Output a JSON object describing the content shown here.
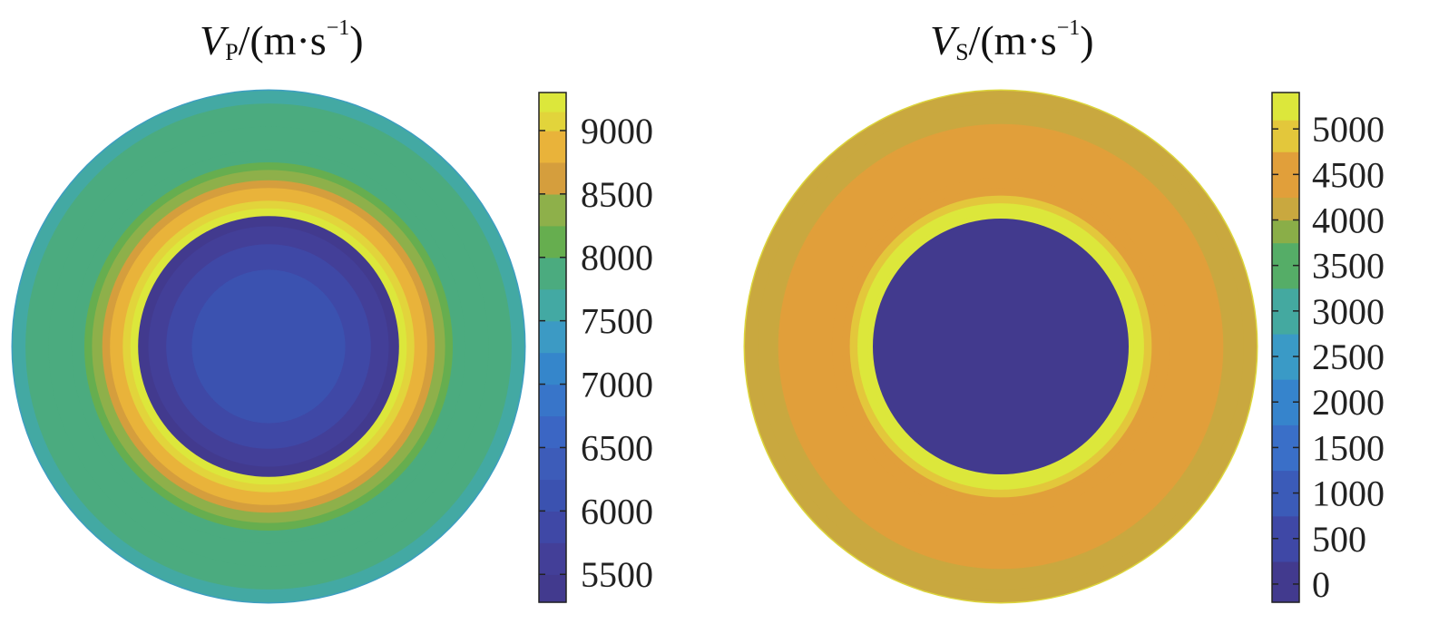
{
  "chart_data": [
    {
      "type": "heatmap",
      "title": {
        "symbol": "V",
        "subscript": "P",
        "unit": "/(m·s",
        "exponent": "−1",
        "close": ")"
      },
      "colorbar": {
        "ticks": [
          5500,
          6000,
          6500,
          7000,
          7500,
          8000,
          8500,
          9000
        ],
        "range": [
          5280,
          9300
        ],
        "levels": [
          {
            "lo": 5280,
            "hi": 5500,
            "color": "#423a8e"
          },
          {
            "lo": 5500,
            "hi": 5750,
            "color": "#433f98"
          },
          {
            "lo": 5750,
            "hi": 6000,
            "color": "#3f48a6"
          },
          {
            "lo": 6000,
            "hi": 6250,
            "color": "#3b52b0"
          },
          {
            "lo": 6250,
            "hi": 6500,
            "color": "#3d5cb9"
          },
          {
            "lo": 6500,
            "hi": 6750,
            "color": "#3b66c4"
          },
          {
            "lo": 6750,
            "hi": 7000,
            "color": "#3875c9"
          },
          {
            "lo": 7000,
            "hi": 7250,
            "color": "#3586cb"
          },
          {
            "lo": 7250,
            "hi": 7500,
            "color": "#3c9ac4"
          },
          {
            "lo": 7500,
            "hi": 7750,
            "color": "#43a9a3"
          },
          {
            "lo": 7750,
            "hi": 8000,
            "color": "#4bab7f"
          },
          {
            "lo": 8000,
            "hi": 8250,
            "color": "#66ae4f"
          },
          {
            "lo": 8250,
            "hi": 8500,
            "color": "#8eb04a"
          },
          {
            "lo": 8500,
            "hi": 8750,
            "color": "#d59e3d"
          },
          {
            "lo": 8750,
            "hi": 9000,
            "color": "#e9b33a"
          },
          {
            "lo": 9000,
            "hi": 9150,
            "color": "#e2d43b"
          },
          {
            "lo": 9150,
            "hi": 9300,
            "color": "#dce73b"
          }
        ]
      },
      "outer_ring_color": "#3d9ec0",
      "radial_profile_outside_to_inside": [
        {
          "r": 1.0,
          "value": 7680
        },
        {
          "r": 0.95,
          "value": 7770
        },
        {
          "r": 0.86,
          "value": 7800
        },
        {
          "r": 0.77,
          "value": 7900
        },
        {
          "r": 0.72,
          "value": 8120
        },
        {
          "r": 0.69,
          "value": 8400
        },
        {
          "r": 0.65,
          "value": 8650
        },
        {
          "r": 0.62,
          "value": 8880
        },
        {
          "r": 0.57,
          "value": 9100
        },
        {
          "r": 0.54,
          "value": 9250
        },
        {
          "r": 0.51,
          "value": 5300
        },
        {
          "r": 0.47,
          "value": 5620
        },
        {
          "r": 0.4,
          "value": 5900
        },
        {
          "r": 0.3,
          "value": 6050
        }
      ]
    },
    {
      "type": "heatmap",
      "title": {
        "symbol": "V",
        "subscript": "S",
        "unit": "/(m·s",
        "exponent": "−1",
        "close": ")"
      },
      "colorbar": {
        "ticks": [
          0,
          500,
          1000,
          1500,
          2000,
          2500,
          3000,
          3500,
          4000,
          4500,
          5000
        ],
        "range": [
          -200,
          5400
        ],
        "levels": [
          {
            "lo": -200,
            "hi": 250,
            "color": "#423a8e"
          },
          {
            "lo": 250,
            "hi": 750,
            "color": "#3f48a6"
          },
          {
            "lo": 750,
            "hi": 1250,
            "color": "#3b5bb8"
          },
          {
            "lo": 1250,
            "hi": 1750,
            "color": "#3a6fc8"
          },
          {
            "lo": 1750,
            "hi": 2250,
            "color": "#3684cc"
          },
          {
            "lo": 2250,
            "hi": 2750,
            "color": "#3a9ac6"
          },
          {
            "lo": 2750,
            "hi": 3250,
            "color": "#44a9a0"
          },
          {
            "lo": 3250,
            "hi": 3750,
            "color": "#55ad67"
          },
          {
            "lo": 3750,
            "hi": 4000,
            "color": "#8aae48"
          },
          {
            "lo": 4000,
            "hi": 4250,
            "color": "#c9a83f"
          },
          {
            "lo": 4250,
            "hi": 4750,
            "color": "#e19f3a"
          },
          {
            "lo": 4750,
            "hi": 5100,
            "color": "#e3c73b"
          },
          {
            "lo": 5100,
            "hi": 5400,
            "color": "#dce73b"
          }
        ]
      },
      "outer_ring_color": "#dcd53b",
      "radial_profile_outside_to_inside": [
        {
          "r": 1.0,
          "value": 4150
        },
        {
          "r": 0.95,
          "value": 4200
        },
        {
          "r": 0.87,
          "value": 4350
        },
        {
          "r": 0.66,
          "value": 4450
        },
        {
          "r": 0.62,
          "value": 4600
        },
        {
          "r": 0.59,
          "value": 4900
        },
        {
          "r": 0.56,
          "value": 5150
        },
        {
          "r": 0.52,
          "value": 5300
        },
        {
          "r": 0.5,
          "value": 0
        }
      ]
    }
  ]
}
